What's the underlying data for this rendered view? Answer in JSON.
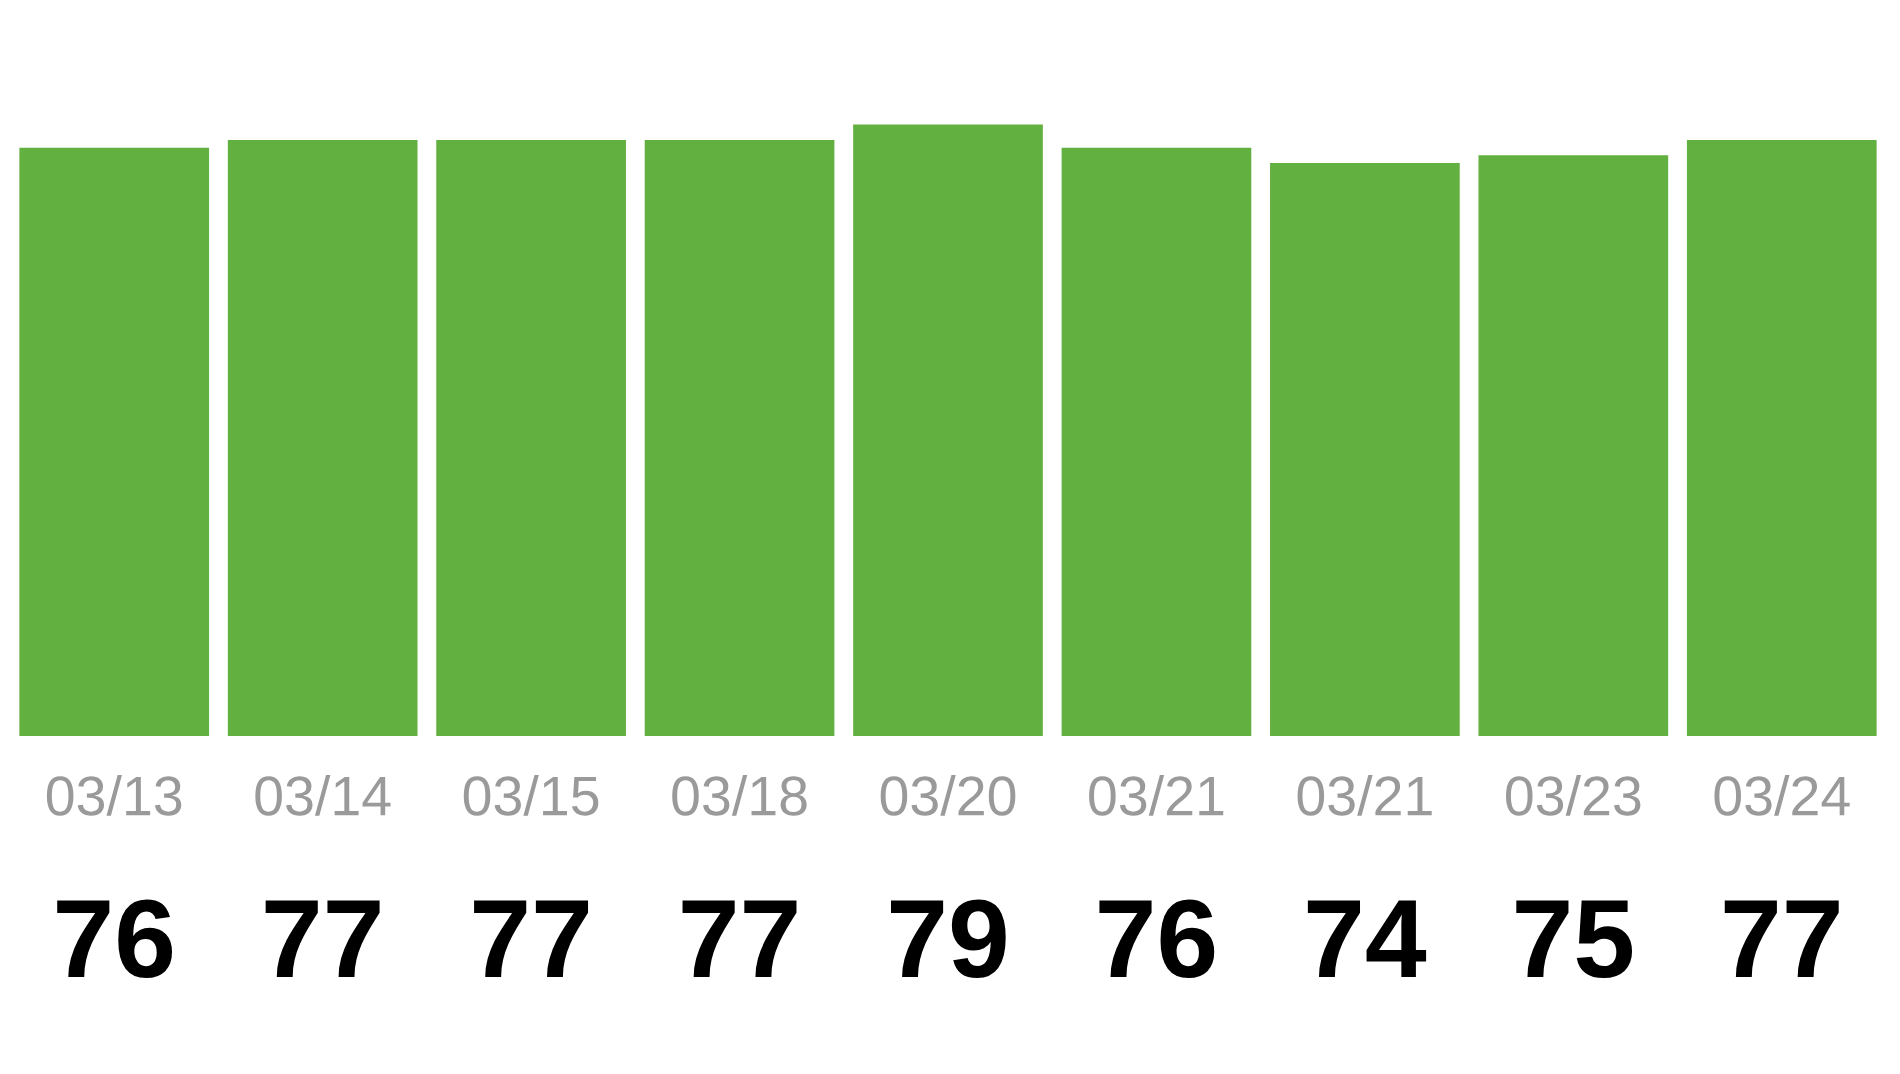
{
  "chart_data": {
    "type": "bar",
    "categories": [
      "03/13",
      "03/14",
      "03/15",
      "03/18",
      "03/20",
      "03/21",
      "03/21",
      "03/23",
      "03/24"
    ],
    "values": [
      76,
      77,
      77,
      77,
      79,
      76,
      74,
      75,
      77
    ],
    "color": "#62b040",
    "data_labels": true,
    "grid": false,
    "legend": false
  }
}
